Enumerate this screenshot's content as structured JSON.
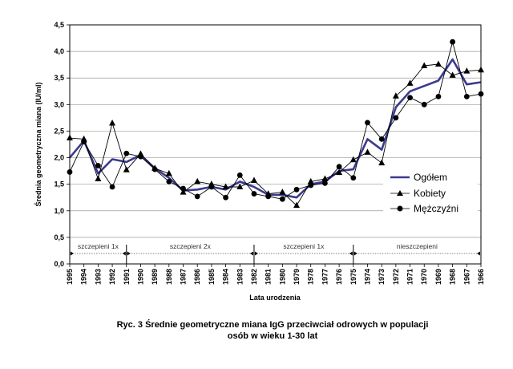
{
  "caption": {
    "line1": "Ryc. 3  Średnie geometryczne miana IgG przeciwciał odrowych w populacji",
    "line2": "osób w wieku 1-30 lat"
  },
  "chart_data": {
    "type": "line",
    "xlabel": "Lata urodzenia",
    "ylabel": "Średnia geometryczna miana (IU/ml)",
    "ylim": [
      0,
      4.5
    ],
    "yticks": [
      "0,0",
      "0,5",
      "1,0",
      "1,5",
      "2,0",
      "2,5",
      "3,0",
      "3,5",
      "4,0",
      "4,5"
    ],
    "grid": "horizontal",
    "legend_position": "right",
    "categories": [
      "1995",
      "1994",
      "1993",
      "1992",
      "1991",
      "1990",
      "1989",
      "1988",
      "1987",
      "1986",
      "1985",
      "1984",
      "1983",
      "1982",
      "1981",
      "1980",
      "1979",
      "1978",
      "1977",
      "1976",
      "1975",
      "1974",
      "1973",
      "1972",
      "1971",
      "1970",
      "1969",
      "1968",
      "1967",
      "1966"
    ],
    "series": [
      {
        "name": "Ogółem",
        "color": "#3b3a8f",
        "marker": "none",
        "values": [
          2.0,
          2.32,
          1.7,
          1.97,
          1.92,
          2.05,
          1.8,
          1.62,
          1.38,
          1.4,
          1.45,
          1.4,
          1.55,
          1.45,
          1.3,
          1.3,
          1.25,
          1.5,
          1.55,
          1.75,
          1.78,
          2.35,
          2.15,
          2.95,
          3.25,
          3.35,
          3.45,
          3.85,
          3.38,
          3.42
        ]
      },
      {
        "name": "Kobiety",
        "color": "#000000",
        "marker": "triangle",
        "values": [
          2.37,
          2.35,
          1.6,
          2.65,
          1.77,
          2.07,
          1.8,
          1.7,
          1.35,
          1.55,
          1.5,
          1.45,
          1.45,
          1.57,
          1.32,
          1.35,
          1.1,
          1.55,
          1.6,
          1.72,
          1.96,
          2.1,
          1.9,
          3.16,
          3.4,
          3.73,
          3.76,
          3.55,
          3.63,
          3.65
        ]
      },
      {
        "name": "Mężczyźni",
        "color": "#000000",
        "marker": "circle",
        "values": [
          1.73,
          2.3,
          1.85,
          1.45,
          2.08,
          2.02,
          1.78,
          1.55,
          1.42,
          1.27,
          1.45,
          1.25,
          1.67,
          1.32,
          1.27,
          1.22,
          1.4,
          1.48,
          1.52,
          1.83,
          1.62,
          2.66,
          2.35,
          2.75,
          3.13,
          3.0,
          3.15,
          4.18,
          3.15,
          3.2
        ]
      }
    ],
    "groups": [
      {
        "label": "szczepieni 1x",
        "from": 0,
        "to": 4
      },
      {
        "label": "szczepieni 2x",
        "from": 4,
        "to": 13
      },
      {
        "label": "szczepieni 1x",
        "from": 13,
        "to": 20
      },
      {
        "label": "nieszczepieni",
        "from": 20,
        "to": 29
      }
    ]
  }
}
